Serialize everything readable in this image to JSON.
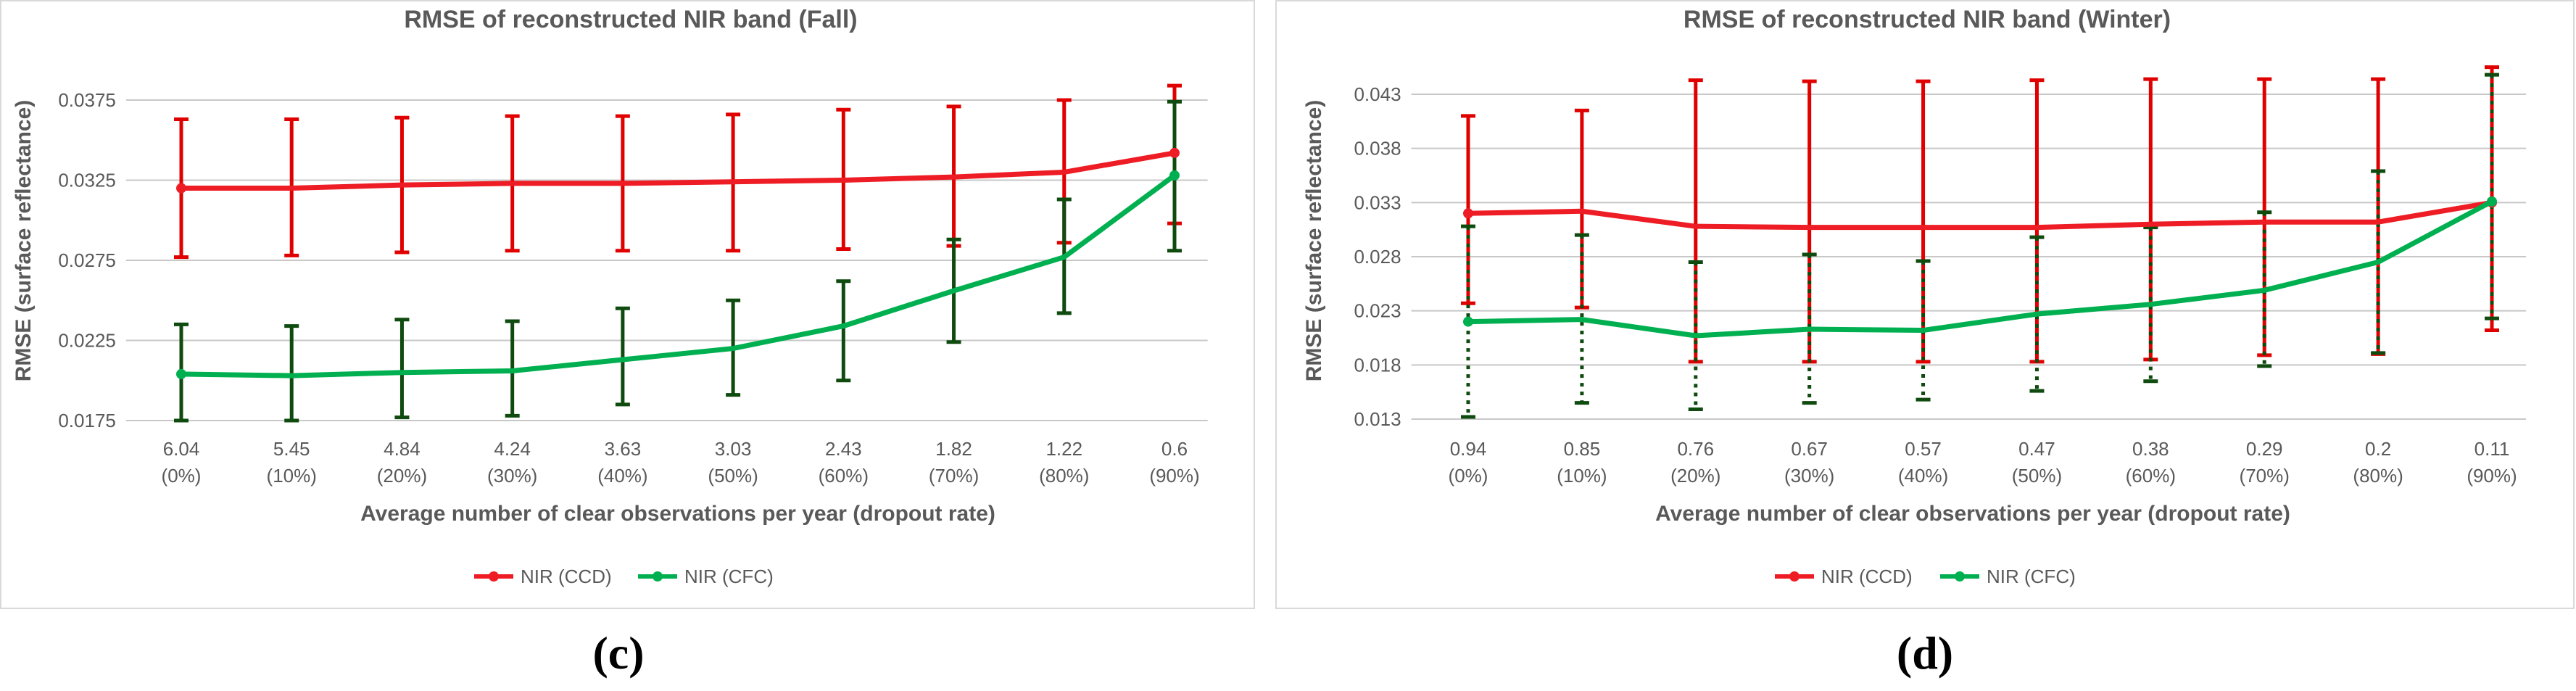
{
  "colors": {
    "ccd": "#ee1c24",
    "ccd_error": "#e00000",
    "cfc": "#00b050",
    "cfc_error": "#0f4a0f",
    "grid": "#c8c8c8",
    "frame": "#d9d9d9",
    "text": "#595959"
  },
  "chart_data": [
    {
      "type": "line",
      "panel_label": "(c)",
      "title": "RMSE of reconstructed NIR band (Fall)",
      "xlabel": "Average number of clear observations per year (dropout rate)",
      "ylabel": "RMSE (surface reflectance)",
      "ylim": [
        0.0175,
        0.0375
      ],
      "yticks": [
        "0.0175",
        "0.0225",
        "0.0275",
        "0.0325",
        "0.0375"
      ],
      "categories": [
        {
          "line1": "6.04",
          "line2": "(0%)"
        },
        {
          "line1": "5.45",
          "line2": "(10%)"
        },
        {
          "line1": "4.84",
          "line2": "(20%)"
        },
        {
          "line1": "4.24",
          "line2": "(30%)"
        },
        {
          "line1": "3.63",
          "line2": "(40%)"
        },
        {
          "line1": "3.03",
          "line2": "(50%)"
        },
        {
          "line1": "2.43",
          "line2": "(60%)"
        },
        {
          "line1": "1.82",
          "line2": "(70%)"
        },
        {
          "line1": "1.22",
          "line2": "(80%)"
        },
        {
          "line1": "0.6",
          "line2": "(90%)"
        }
      ],
      "series": [
        {
          "name": "NIR (CCD)",
          "color_key": "ccd",
          "error_color_key": "ccd_error",
          "error_style": "solid",
          "values": [
            0.032,
            0.032,
            0.0322,
            0.0323,
            0.0323,
            0.0324,
            0.0325,
            0.0327,
            0.033,
            0.0342
          ],
          "err_upper": [
            0.0363,
            0.0363,
            0.0364,
            0.0365,
            0.0365,
            0.0366,
            0.0369,
            0.0371,
            0.0375,
            0.0384
          ],
          "err_lower": [
            0.0277,
            0.0278,
            0.028,
            0.0281,
            0.0281,
            0.0281,
            0.0282,
            0.0284,
            0.0286,
            0.0298
          ]
        },
        {
          "name": "NIR (CFC)",
          "color_key": "cfc",
          "error_color_key": "cfc_error",
          "error_style": "solid",
          "values": [
            0.0204,
            0.0203,
            0.0205,
            0.0206,
            0.0213,
            0.022,
            0.0234,
            0.0256,
            0.0277,
            0.0328
          ],
          "err_upper": [
            0.0235,
            0.0234,
            0.0238,
            0.0237,
            0.0245,
            0.025,
            0.0262,
            0.0288,
            0.0313,
            0.0374
          ],
          "err_lower": [
            0.0175,
            0.0175,
            0.0177,
            0.0178,
            0.0185,
            0.0191,
            0.02,
            0.0224,
            0.0242,
            0.0281
          ]
        }
      ]
    },
    {
      "type": "line",
      "panel_label": "(d)",
      "title": "RMSE of reconstructed NIR band (Winter)",
      "xlabel": "Average number of clear observations per year (dropout rate)",
      "ylabel": "RMSE (surface reflectance)",
      "ylim": [
        0.013,
        0.043
      ],
      "yticks": [
        "0.013",
        "0.018",
        "0.023",
        "0.028",
        "0.033",
        "0.038",
        "0.043"
      ],
      "categories": [
        {
          "line1": "0.94",
          "line2": "(0%)"
        },
        {
          "line1": "0.85",
          "line2": "(10%)"
        },
        {
          "line1": "0.76",
          "line2": "(20%)"
        },
        {
          "line1": "0.67",
          "line2": "(30%)"
        },
        {
          "line1": "0.57",
          "line2": "(40%)"
        },
        {
          "line1": "0.47",
          "line2": "(50%)"
        },
        {
          "line1": "0.38",
          "line2": "(60%)"
        },
        {
          "line1": "0.29",
          "line2": "(70%)"
        },
        {
          "line1": "0.2",
          "line2": "(80%)"
        },
        {
          "line1": "0.11",
          "line2": "(90%)"
        }
      ],
      "series": [
        {
          "name": "NIR (CCD)",
          "color_key": "ccd",
          "error_color_key": "ccd_error",
          "error_style": "solid",
          "values": [
            0.032,
            0.0322,
            0.0308,
            0.0307,
            0.0307,
            0.0307,
            0.031,
            0.0312,
            0.0312,
            0.033
          ],
          "err_upper": [
            0.041,
            0.0415,
            0.0443,
            0.0442,
            0.0442,
            0.0443,
            0.0444,
            0.0444,
            0.0444,
            0.0455
          ],
          "err_lower": [
            0.0237,
            0.0233,
            0.0183,
            0.0183,
            0.0183,
            0.0183,
            0.0185,
            0.0189,
            0.019,
            0.0212
          ]
        },
        {
          "name": "NIR (CFC)",
          "color_key": "cfc",
          "error_color_key": "cfc_error",
          "error_style": "dotted",
          "values": [
            0.022,
            0.0222,
            0.0207,
            0.0213,
            0.0212,
            0.0227,
            0.0236,
            0.0249,
            0.0275,
            0.0331
          ],
          "err_upper": [
            0.0308,
            0.03,
            0.0275,
            0.0282,
            0.0276,
            0.0298,
            0.0307,
            0.0321,
            0.0359,
            0.0448
          ],
          "err_lower": [
            0.0132,
            0.0145,
            0.0139,
            0.0145,
            0.0148,
            0.0156,
            0.0165,
            0.0179,
            0.0191,
            0.0223
          ]
        }
      ]
    }
  ]
}
